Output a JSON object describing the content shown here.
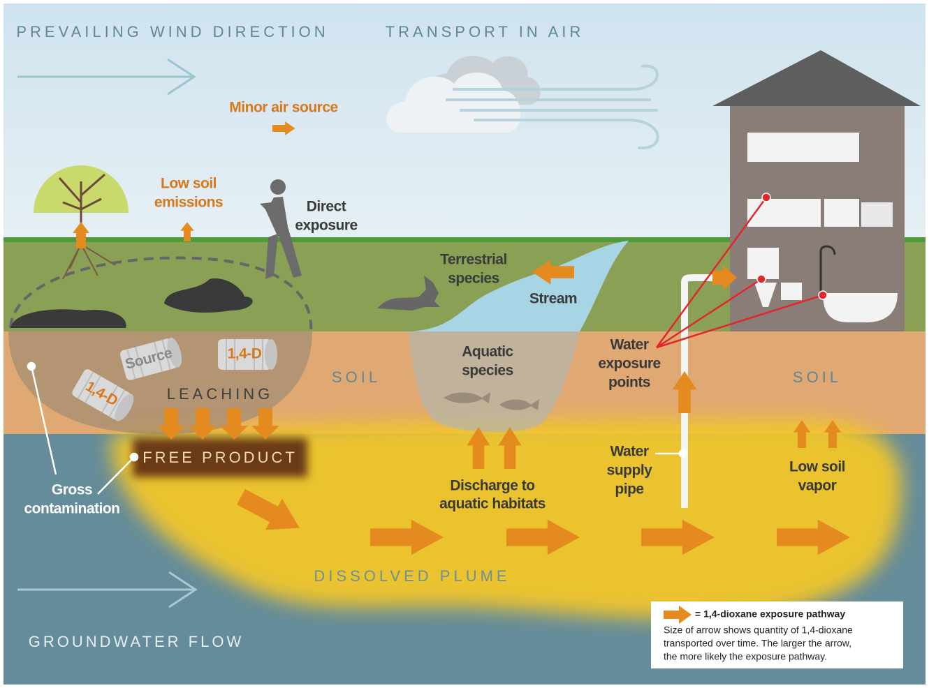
{
  "wind_direction": "PREVAILING WIND DIRECTION",
  "transport_in_air": "TRANSPORT IN AIR",
  "minor_air_source": "Minor air source",
  "low_soil_emissions": [
    "Low soil",
    "emissions"
  ],
  "direct_exposure": [
    "Direct",
    "exposure"
  ],
  "terrestrial_species": [
    "Terrestrial",
    "species"
  ],
  "stream": "Stream",
  "aquatic_species": [
    "Aquatic",
    "species"
  ],
  "soil_labels": [
    "SOIL",
    "SOIL"
  ],
  "barrels": [
    "Source",
    "1,4-D",
    "1,4-D"
  ],
  "leaching": "LEACHING",
  "free_product": "FREE PRODUCT",
  "gross_contamination": [
    "Gross",
    "contamination"
  ],
  "water_exposure_points": [
    "Water",
    "exposure",
    "points"
  ],
  "water_supply_pipe": [
    "Water",
    "supply",
    "pipe"
  ],
  "discharge": [
    "Discharge to",
    "aquatic habitats"
  ],
  "low_soil_vapor": [
    "Low soil",
    "vapor"
  ],
  "dissolved_plume": "DISSOLVED PLUME",
  "groundwater_flow": "GROUNDWATER FLOW",
  "legend": {
    "title": "= 1,4-dioxane exposure pathway",
    "note": [
      "Size of arrow shows quantity of 1,4-dioxane",
      "transported over time. The larger the arrow,",
      "the more likely the exposure pathway."
    ]
  }
}
